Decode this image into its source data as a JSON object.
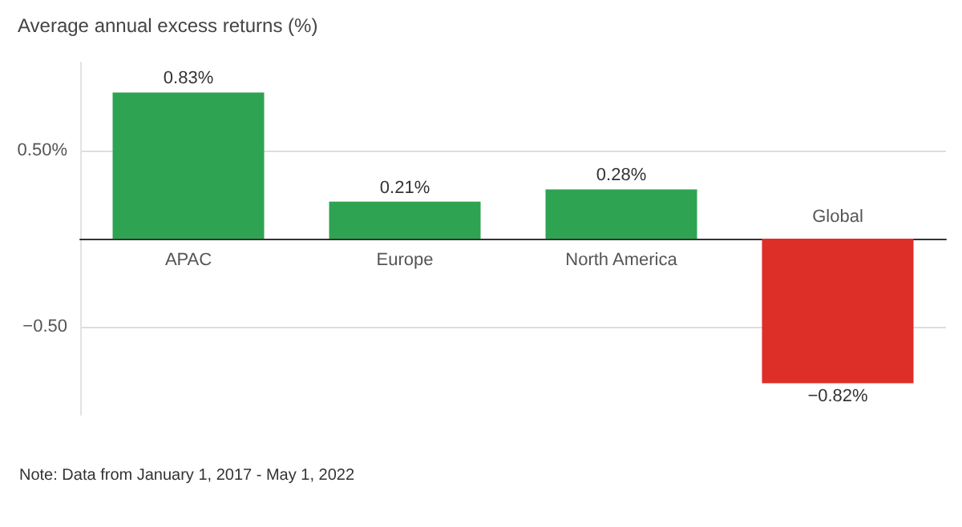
{
  "chart_data": {
    "type": "bar",
    "title": "Average annual excess returns (%)",
    "categories": [
      "APAC",
      "Europe",
      "North America",
      "Global"
    ],
    "values": [
      0.83,
      0.21,
      0.28,
      -0.82
    ],
    "colors": [
      "#2ea352",
      "#2ea352",
      "#2ea352",
      "#dd2e27"
    ],
    "value_labels": [
      "0.83%",
      "0.21%",
      "0.28%",
      "−0.82%"
    ],
    "yticks": [
      {
        "value": -0.5,
        "label": "−0.50"
      },
      {
        "value": 0,
        "label": null
      },
      {
        "value": 0.5,
        "label": "0.50%"
      }
    ],
    "ylim": [
      -1,
      1
    ],
    "grid": "y",
    "annotations": [
      "Note: Data from January 1, 2017 - May 1, 2022"
    ]
  }
}
